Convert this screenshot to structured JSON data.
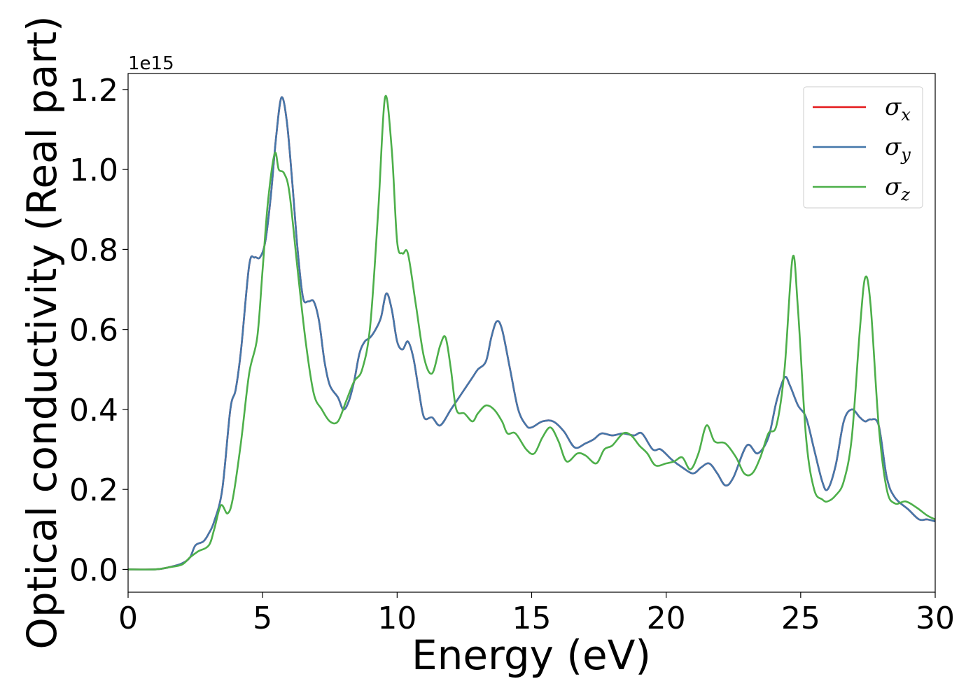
{
  "chart_data": {
    "type": "line",
    "title": "",
    "xlabel": "Energy (eV)",
    "ylabel": "Optical conductivity (Real part)",
    "y_offset_label": "1e15",
    "y_multiplier": 1000000000000000.0,
    "xlim": [
      0,
      30
    ],
    "ylim": [
      -0.057,
      1.24
    ],
    "xticks": [
      0,
      5,
      10,
      15,
      20,
      25,
      30
    ],
    "xtick_labels": [
      "0",
      "5",
      "10",
      "15",
      "20",
      "25",
      "30"
    ],
    "yticks": [
      0.0,
      0.2,
      0.4,
      0.6,
      0.8,
      1.0,
      1.2
    ],
    "ytick_labels": [
      "0.0",
      "0.2",
      "0.4",
      "0.6",
      "0.8",
      "1.0",
      "1.2"
    ],
    "grid": false,
    "legend_position": "top-right",
    "series": [
      {
        "name": "σx",
        "name_base": "σ",
        "name_sub": "x",
        "color": "#e41a1c",
        "same_as": "σy"
      },
      {
        "name": "σy",
        "name_base": "σ",
        "name_sub": "y",
        "color": "#4477aa",
        "points": [
          [
            0,
            0.0
          ],
          [
            1,
            0.0
          ],
          [
            1.5,
            0.005
          ],
          [
            2,
            0.015
          ],
          [
            2.3,
            0.03
          ],
          [
            2.5,
            0.06
          ],
          [
            2.8,
            0.07
          ],
          [
            3.0,
            0.09
          ],
          [
            3.2,
            0.12
          ],
          [
            3.5,
            0.2
          ],
          [
            3.8,
            0.4
          ],
          [
            4.0,
            0.45
          ],
          [
            4.2,
            0.55
          ],
          [
            4.5,
            0.76
          ],
          [
            4.7,
            0.78
          ],
          [
            4.9,
            0.78
          ],
          [
            5.1,
            0.82
          ],
          [
            5.3,
            0.93
          ],
          [
            5.5,
            1.08
          ],
          [
            5.7,
            1.18
          ],
          [
            5.9,
            1.12
          ],
          [
            6.1,
            0.97
          ],
          [
            6.3,
            0.8
          ],
          [
            6.5,
            0.68
          ],
          [
            6.7,
            0.67
          ],
          [
            6.9,
            0.67
          ],
          [
            7.1,
            0.62
          ],
          [
            7.3,
            0.52
          ],
          [
            7.5,
            0.46
          ],
          [
            7.8,
            0.43
          ],
          [
            8.0,
            0.4
          ],
          [
            8.2,
            0.42
          ],
          [
            8.4,
            0.47
          ],
          [
            8.6,
            0.54
          ],
          [
            8.8,
            0.57
          ],
          [
            9.0,
            0.58
          ],
          [
            9.2,
            0.6
          ],
          [
            9.4,
            0.63
          ],
          [
            9.6,
            0.69
          ],
          [
            9.8,
            0.65
          ],
          [
            10.0,
            0.57
          ],
          [
            10.2,
            0.55
          ],
          [
            10.4,
            0.57
          ],
          [
            10.6,
            0.53
          ],
          [
            10.8,
            0.45
          ],
          [
            11.0,
            0.38
          ],
          [
            11.3,
            0.38
          ],
          [
            11.6,
            0.36
          ],
          [
            12.0,
            0.4
          ],
          [
            12.4,
            0.44
          ],
          [
            12.8,
            0.48
          ],
          [
            13.0,
            0.5
          ],
          [
            13.3,
            0.52
          ],
          [
            13.5,
            0.58
          ],
          [
            13.7,
            0.62
          ],
          [
            13.9,
            0.6
          ],
          [
            14.2,
            0.5
          ],
          [
            14.5,
            0.4
          ],
          [
            14.8,
            0.36
          ],
          [
            15.0,
            0.355
          ],
          [
            15.4,
            0.37
          ],
          [
            15.8,
            0.37
          ],
          [
            16.2,
            0.345
          ],
          [
            16.6,
            0.305
          ],
          [
            17.0,
            0.315
          ],
          [
            17.3,
            0.325
          ],
          [
            17.6,
            0.34
          ],
          [
            18.0,
            0.335
          ],
          [
            18.4,
            0.34
          ],
          [
            18.8,
            0.335
          ],
          [
            19.1,
            0.34
          ],
          [
            19.5,
            0.3
          ],
          [
            19.8,
            0.3
          ],
          [
            20.2,
            0.275
          ],
          [
            20.6,
            0.255
          ],
          [
            21.0,
            0.24
          ],
          [
            21.3,
            0.255
          ],
          [
            21.6,
            0.265
          ],
          [
            21.9,
            0.24
          ],
          [
            22.2,
            0.21
          ],
          [
            22.5,
            0.23
          ],
          [
            23.0,
            0.31
          ],
          [
            23.4,
            0.29
          ],
          [
            23.8,
            0.33
          ],
          [
            24.1,
            0.42
          ],
          [
            24.4,
            0.48
          ],
          [
            24.6,
            0.46
          ],
          [
            24.9,
            0.41
          ],
          [
            25.2,
            0.38
          ],
          [
            25.5,
            0.3
          ],
          [
            25.8,
            0.22
          ],
          [
            26.0,
            0.2
          ],
          [
            26.3,
            0.26
          ],
          [
            26.6,
            0.37
          ],
          [
            26.9,
            0.4
          ],
          [
            27.2,
            0.38
          ],
          [
            27.4,
            0.37
          ],
          [
            27.6,
            0.375
          ],
          [
            27.9,
            0.36
          ],
          [
            28.2,
            0.23
          ],
          [
            28.5,
            0.18
          ],
          [
            29.0,
            0.15
          ],
          [
            29.4,
            0.125
          ],
          [
            29.7,
            0.125
          ],
          [
            30.0,
            0.12
          ]
        ]
      },
      {
        "name": "σz",
        "name_base": "σ",
        "name_sub": "z",
        "color": "#4daf4a",
        "points": [
          [
            0,
            0.0
          ],
          [
            1,
            0.0
          ],
          [
            1.5,
            0.005
          ],
          [
            2,
            0.012
          ],
          [
            2.3,
            0.03
          ],
          [
            2.6,
            0.045
          ],
          [
            3.0,
            0.06
          ],
          [
            3.2,
            0.1
          ],
          [
            3.45,
            0.16
          ],
          [
            3.7,
            0.14
          ],
          [
            3.9,
            0.18
          ],
          [
            4.2,
            0.32
          ],
          [
            4.5,
            0.49
          ],
          [
            4.8,
            0.58
          ],
          [
            5.0,
            0.75
          ],
          [
            5.2,
            0.92
          ],
          [
            5.45,
            1.04
          ],
          [
            5.6,
            1.0
          ],
          [
            5.8,
            0.99
          ],
          [
            6.0,
            0.94
          ],
          [
            6.3,
            0.75
          ],
          [
            6.6,
            0.57
          ],
          [
            6.9,
            0.44
          ],
          [
            7.2,
            0.4
          ],
          [
            7.5,
            0.37
          ],
          [
            7.8,
            0.37
          ],
          [
            8.1,
            0.42
          ],
          [
            8.4,
            0.47
          ],
          [
            8.7,
            0.5
          ],
          [
            9.0,
            0.61
          ],
          [
            9.3,
            0.9
          ],
          [
            9.55,
            1.18
          ],
          [
            9.8,
            1.05
          ],
          [
            10.0,
            0.82
          ],
          [
            10.2,
            0.79
          ],
          [
            10.4,
            0.79
          ],
          [
            10.7,
            0.66
          ],
          [
            11.0,
            0.53
          ],
          [
            11.3,
            0.49
          ],
          [
            11.6,
            0.56
          ],
          [
            11.8,
            0.58
          ],
          [
            12.0,
            0.5
          ],
          [
            12.2,
            0.4
          ],
          [
            12.5,
            0.39
          ],
          [
            12.8,
            0.37
          ],
          [
            13.0,
            0.39
          ],
          [
            13.3,
            0.41
          ],
          [
            13.6,
            0.4
          ],
          [
            13.9,
            0.37
          ],
          [
            14.1,
            0.34
          ],
          [
            14.4,
            0.34
          ],
          [
            14.8,
            0.3
          ],
          [
            15.1,
            0.29
          ],
          [
            15.4,
            0.33
          ],
          [
            15.7,
            0.355
          ],
          [
            16.0,
            0.32
          ],
          [
            16.3,
            0.27
          ],
          [
            16.7,
            0.29
          ],
          [
            17.0,
            0.285
          ],
          [
            17.4,
            0.265
          ],
          [
            17.7,
            0.3
          ],
          [
            18.0,
            0.31
          ],
          [
            18.4,
            0.34
          ],
          [
            18.7,
            0.335
          ],
          [
            19.0,
            0.31
          ],
          [
            19.3,
            0.29
          ],
          [
            19.6,
            0.26
          ],
          [
            20.0,
            0.265
          ],
          [
            20.3,
            0.27
          ],
          [
            20.6,
            0.28
          ],
          [
            20.9,
            0.25
          ],
          [
            21.2,
            0.29
          ],
          [
            21.5,
            0.36
          ],
          [
            21.8,
            0.32
          ],
          [
            22.2,
            0.315
          ],
          [
            22.6,
            0.28
          ],
          [
            22.9,
            0.24
          ],
          [
            23.2,
            0.24
          ],
          [
            23.5,
            0.28
          ],
          [
            23.8,
            0.34
          ],
          [
            24.1,
            0.36
          ],
          [
            24.4,
            0.5
          ],
          [
            24.7,
            0.78
          ],
          [
            24.9,
            0.65
          ],
          [
            25.2,
            0.33
          ],
          [
            25.5,
            0.2
          ],
          [
            25.8,
            0.175
          ],
          [
            26.0,
            0.17
          ],
          [
            26.3,
            0.185
          ],
          [
            26.6,
            0.22
          ],
          [
            26.9,
            0.33
          ],
          [
            27.2,
            0.6
          ],
          [
            27.4,
            0.73
          ],
          [
            27.6,
            0.66
          ],
          [
            27.9,
            0.36
          ],
          [
            28.2,
            0.2
          ],
          [
            28.5,
            0.165
          ],
          [
            28.9,
            0.17
          ],
          [
            29.3,
            0.155
          ],
          [
            29.7,
            0.135
          ],
          [
            30.0,
            0.125
          ]
        ]
      }
    ]
  }
}
